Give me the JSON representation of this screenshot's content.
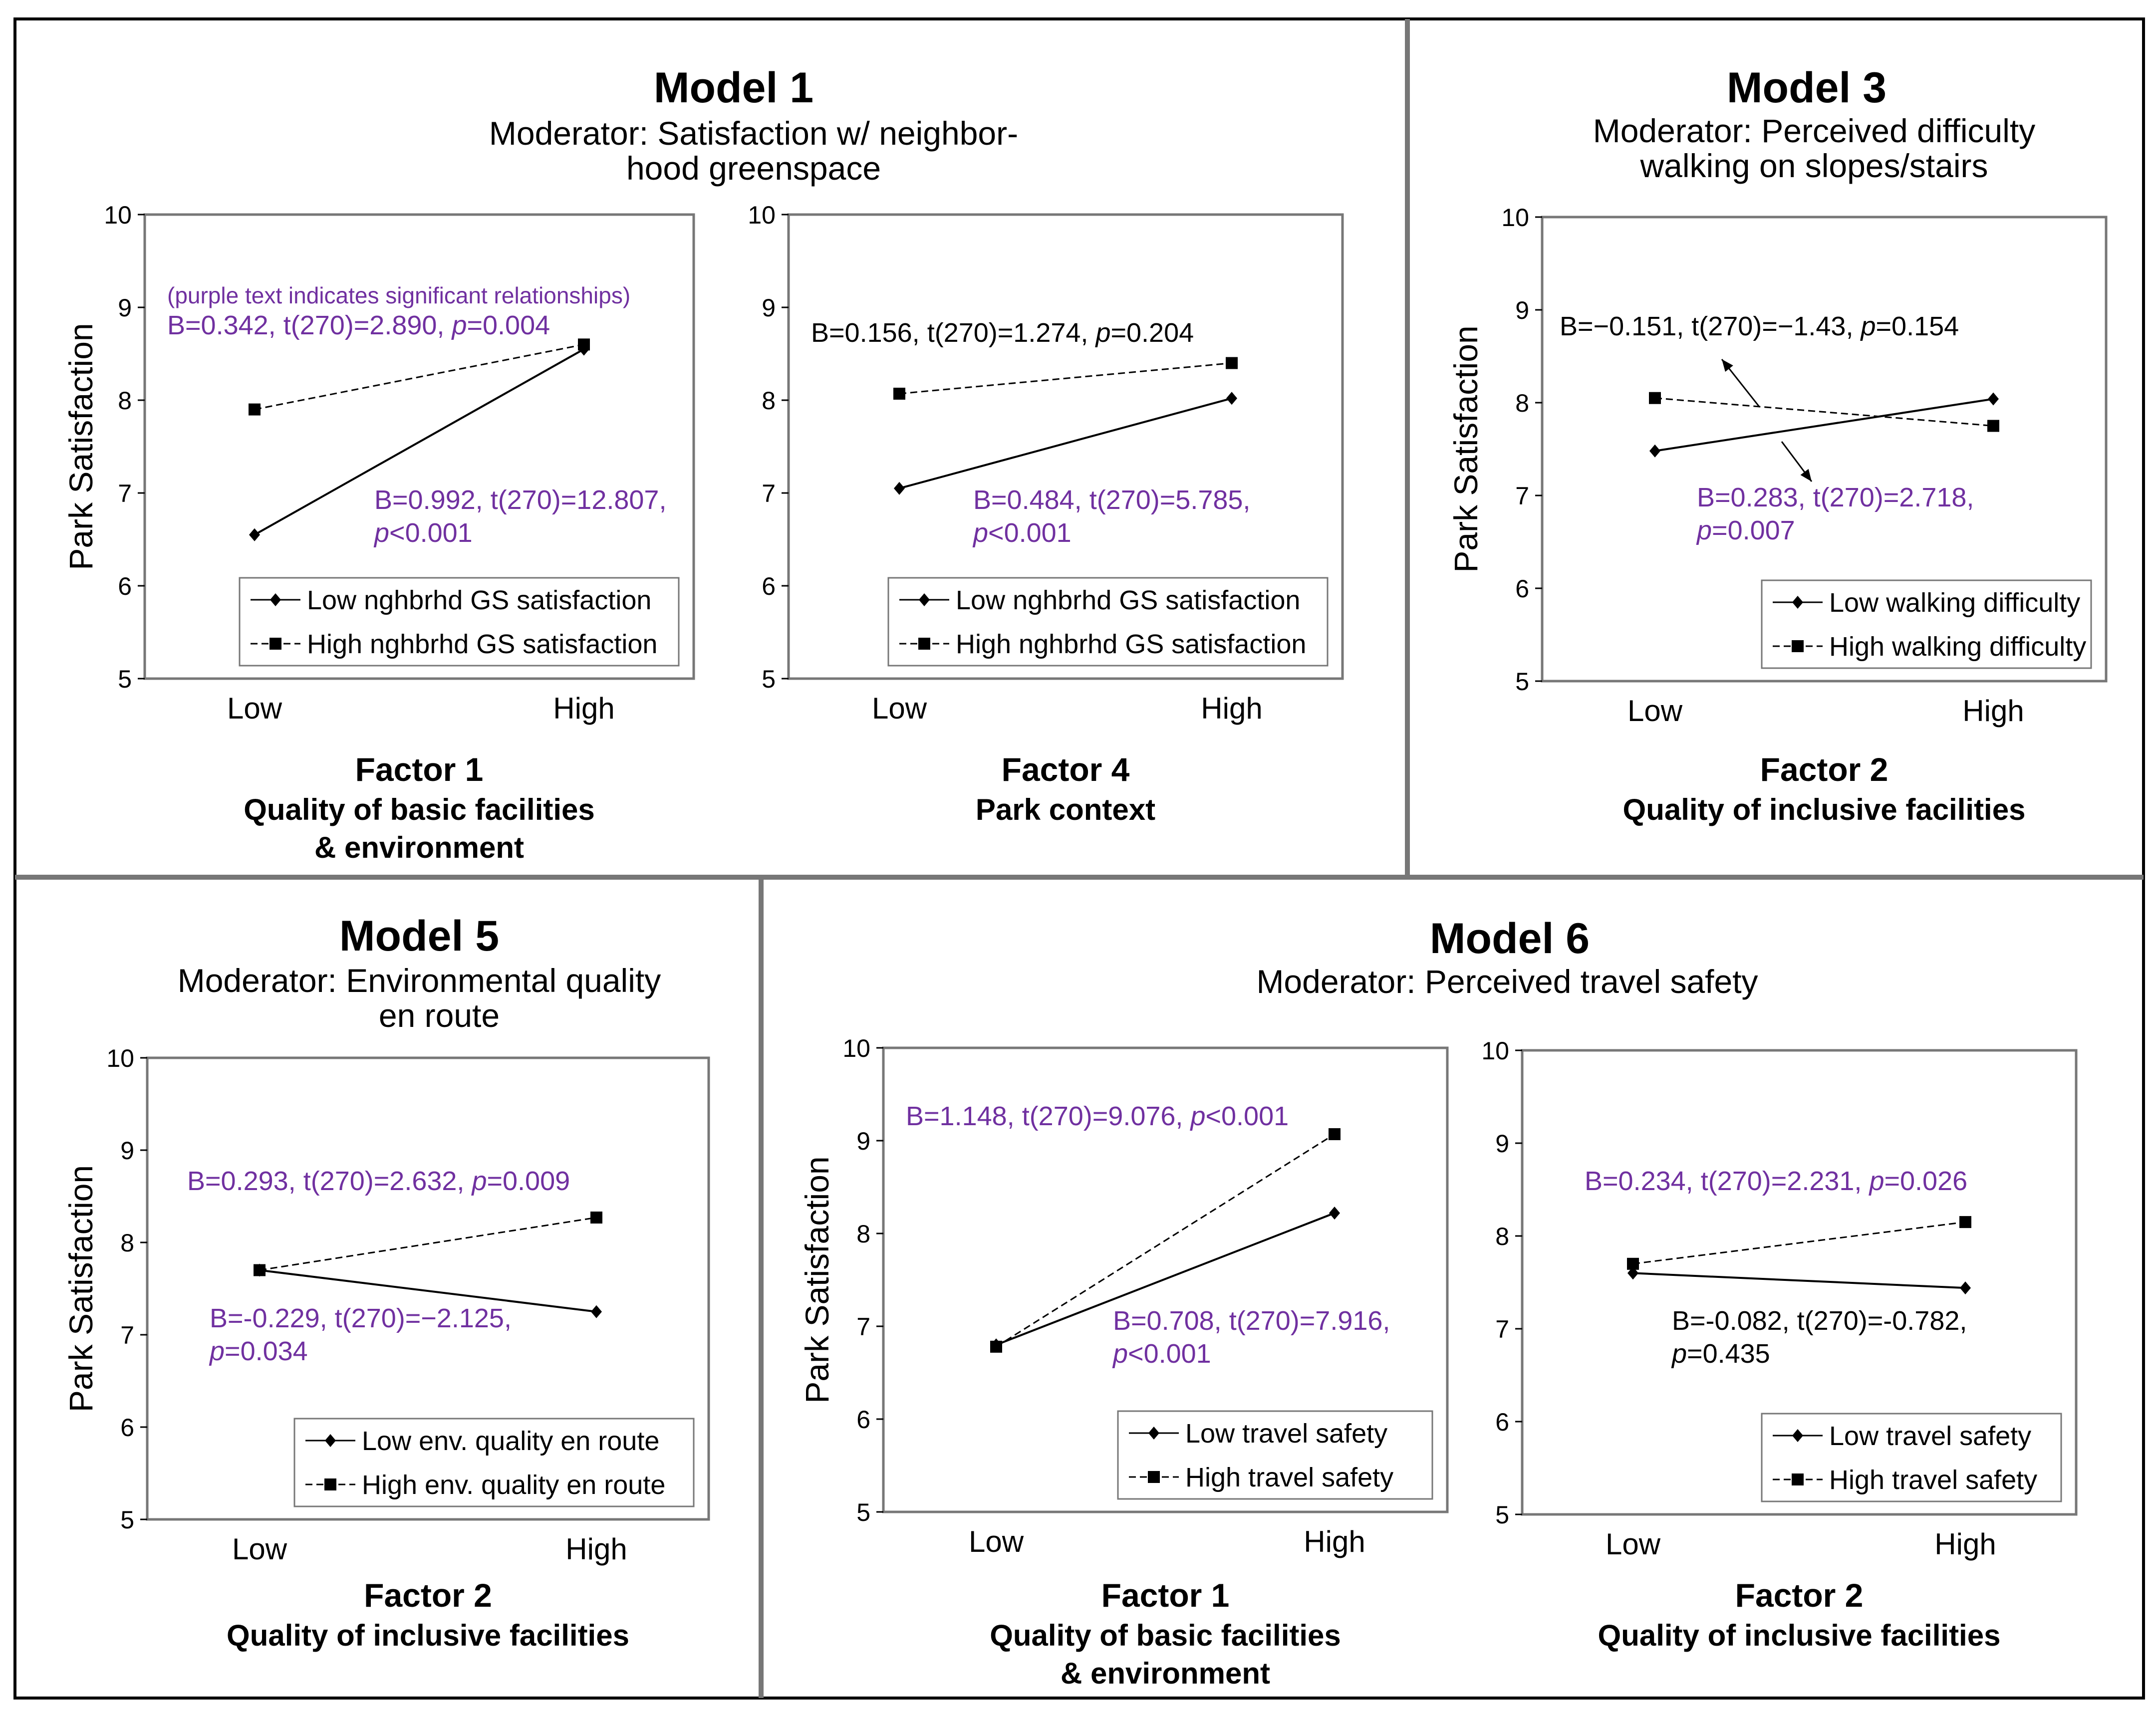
{
  "note": "(purple text indicates significant relationships)",
  "colors": {
    "significant": "#7030A0",
    "nonsignificant": "#000000",
    "frame": "#777777",
    "border": "#000000"
  },
  "chart_data": [
    {
      "type": "line",
      "model": "Model 1",
      "moderator_lines": [
        "Moderator: Satisfaction w/ neighbor-",
        "hood greenspace"
      ],
      "factor_title": "Factor 1",
      "factor_lines": [
        "Quality of basic facilities",
        "& environment"
      ],
      "ylabel": "Park Satisfaction",
      "ylim": [
        5,
        10
      ],
      "y_ticks": [
        "5",
        "6",
        "7",
        "8",
        "9",
        "10"
      ],
      "categories": [
        "Low",
        "High"
      ],
      "series": [
        {
          "name": "Low  nghbrhd GS satisfaction",
          "style": "solid",
          "marker": "diamond",
          "values": [
            6.55,
            8.55
          ]
        },
        {
          "name": "High nghbrhd GS satisfaction",
          "style": "dashed",
          "marker": "square",
          "values": [
            7.9,
            8.6
          ]
        }
      ],
      "annotations": [
        {
          "key": "high",
          "lines": [
            [
              {
                "t": "B=0.342, t(270)=2.890, "
              },
              {
                "t": "p",
                "i": true
              },
              {
                "t": "=0.004"
              }
            ]
          ],
          "significant": true
        },
        {
          "key": "low",
          "lines": [
            [
              {
                "t": "B=0.992, t(270)=12.807,"
              }
            ],
            [
              {
                "t": "p",
                "i": true
              },
              {
                "t": "<0.001"
              }
            ]
          ],
          "significant": true
        }
      ]
    },
    {
      "type": "line",
      "model": "",
      "moderator_lines": [],
      "factor_title": "Factor 4",
      "factor_lines": [
        "Park context"
      ],
      "ylabel": "",
      "ylim": [
        5,
        10
      ],
      "y_ticks": [
        "5",
        "6",
        "7",
        "8",
        "9",
        "10"
      ],
      "categories": [
        "Low",
        "High"
      ],
      "series": [
        {
          "name": "Low  nghbrhd GS satisfaction",
          "style": "solid",
          "marker": "diamond",
          "values": [
            7.05,
            8.02
          ]
        },
        {
          "name": "High nghbrhd GS satisfaction",
          "style": "dashed",
          "marker": "square",
          "values": [
            8.07,
            8.4
          ]
        }
      ],
      "annotations": [
        {
          "key": "high",
          "lines": [
            [
              {
                "t": "B=0.156, t(270)=1.274, "
              },
              {
                "t": "p",
                "i": true
              },
              {
                "t": "=0.204"
              }
            ]
          ],
          "significant": false
        },
        {
          "key": "low",
          "lines": [
            [
              {
                "t": "B=0.484, t(270)=5.785,"
              }
            ],
            [
              {
                "t": "p",
                "i": true
              },
              {
                "t": "<0.001"
              }
            ]
          ],
          "significant": true
        }
      ]
    },
    {
      "type": "line",
      "model": "Model 3",
      "moderator_lines": [
        "Moderator: Perceived difficulty",
        "walking on slopes/stairs"
      ],
      "factor_title": "Factor 2",
      "factor_lines": [
        "Quality of inclusive facilities"
      ],
      "ylabel": "Park Satisfaction",
      "ylim": [
        5,
        10
      ],
      "y_ticks": [
        "5",
        "6",
        "7",
        "8",
        "9",
        "10"
      ],
      "categories": [
        "Low",
        "High"
      ],
      "series": [
        {
          "name": "Low  walking difficulty",
          "style": "solid",
          "marker": "diamond",
          "values": [
            7.48,
            8.04
          ]
        },
        {
          "name": "High walking difficulty",
          "style": "dashed",
          "marker": "square",
          "values": [
            8.05,
            7.75
          ]
        }
      ],
      "annotations": [
        {
          "key": "high",
          "lines": [
            [
              {
                "t": "B=−0.151, t(270)=−1.43, "
              },
              {
                "t": "p",
                "i": true
              },
              {
                "t": "=0.154"
              }
            ]
          ],
          "significant": false
        },
        {
          "key": "low",
          "lines": [
            [
              {
                "t": "B=0.283, t(270)=2.718,"
              }
            ],
            [
              {
                "t": "p",
                "i": true
              },
              {
                "t": "=0.007"
              }
            ]
          ],
          "significant": true
        }
      ]
    },
    {
      "type": "line",
      "model": "Model 5",
      "moderator_lines": [
        "Moderator: Environmental quality",
        "en route"
      ],
      "factor_title": "Factor 2",
      "factor_lines": [
        "Quality of inclusive facilities"
      ],
      "ylabel": "Park Satisfaction",
      "ylim": [
        5,
        10
      ],
      "y_ticks": [
        "5",
        "6",
        "7",
        "8",
        "9",
        "10"
      ],
      "categories": [
        "Low",
        "High"
      ],
      "series": [
        {
          "name": "Low  env. quality en route",
          "style": "solid",
          "marker": "diamond",
          "values": [
            7.7,
            7.25
          ]
        },
        {
          "name": "High env. quality en route",
          "style": "dashed",
          "marker": "square",
          "values": [
            7.7,
            8.27
          ]
        }
      ],
      "annotations": [
        {
          "key": "high",
          "lines": [
            [
              {
                "t": "B=0.293, t(270)=2.632, "
              },
              {
                "t": "p",
                "i": true
              },
              {
                "t": "=0.009"
              }
            ]
          ],
          "significant": true
        },
        {
          "key": "low",
          "lines": [
            [
              {
                "t": "B=-0.229, t(270)=−2.125,"
              }
            ],
            [
              {
                "t": "p",
                "i": true
              },
              {
                "t": "=0.034"
              }
            ]
          ],
          "significant": true
        }
      ]
    },
    {
      "type": "line",
      "model": "Model 6",
      "moderator_lines": [
        "Moderator: Perceived travel safety"
      ],
      "factor_title": "Factor 1",
      "factor_lines": [
        "Quality of basic facilities",
        "& environment"
      ],
      "ylabel": "Park Satisfaction",
      "ylim": [
        5,
        10
      ],
      "y_ticks": [
        "5",
        "6",
        "7",
        "8",
        "9",
        "10"
      ],
      "categories": [
        "Low",
        "High"
      ],
      "series": [
        {
          "name": "Low  travel safety",
          "style": "solid",
          "marker": "diamond",
          "values": [
            6.8,
            8.22
          ]
        },
        {
          "name": "High travel safety",
          "style": "dashed",
          "marker": "square",
          "values": [
            6.78,
            9.07
          ]
        }
      ],
      "annotations": [
        {
          "key": "high",
          "lines": [
            [
              {
                "t": "B=1.148, t(270)=9.076, "
              },
              {
                "t": "p",
                "i": true
              },
              {
                "t": "<0.001"
              }
            ]
          ],
          "significant": true
        },
        {
          "key": "low",
          "lines": [
            [
              {
                "t": "B=0.708, t(270)=7.916,"
              }
            ],
            [
              {
                "t": "p",
                "i": true
              },
              {
                "t": "<0.001"
              }
            ]
          ],
          "significant": true
        }
      ]
    },
    {
      "type": "line",
      "model": "",
      "moderator_lines": [],
      "factor_title": "Factor 2",
      "factor_lines": [
        "Quality of inclusive facilities"
      ],
      "ylabel": "",
      "ylim": [
        5,
        10
      ],
      "y_ticks": [
        "5",
        "6",
        "7",
        "8",
        "9",
        "10"
      ],
      "categories": [
        "Low",
        "High"
      ],
      "series": [
        {
          "name": "Low  travel safety",
          "style": "solid",
          "marker": "diamond",
          "values": [
            7.6,
            7.44
          ]
        },
        {
          "name": "High travel safety",
          "style": "dashed",
          "marker": "square",
          "values": [
            7.7,
            8.15
          ]
        }
      ],
      "annotations": [
        {
          "key": "high",
          "lines": [
            [
              {
                "t": "B=0.234, t(270)=2.231, "
              },
              {
                "t": "p",
                "i": true
              },
              {
                "t": "=0.026"
              }
            ]
          ],
          "significant": true
        },
        {
          "key": "low",
          "lines": [
            [
              {
                "t": "B=-0.082, t(270)=-0.782,"
              }
            ],
            [
              {
                "t": "p",
                "i": true
              },
              {
                "t": "=0.435"
              }
            ]
          ],
          "significant": false
        }
      ]
    }
  ]
}
